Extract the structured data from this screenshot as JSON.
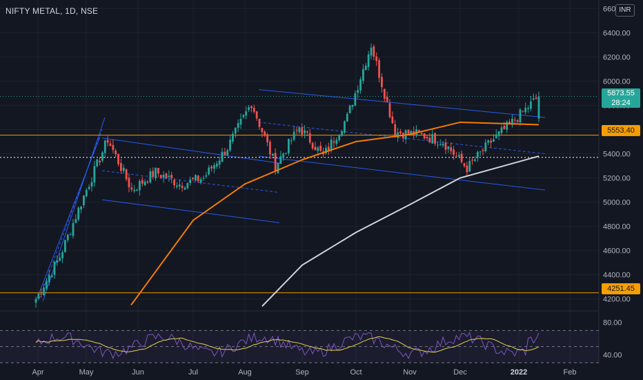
{
  "header": {
    "symbol_line": "NIFTY METAL, 1D, NSE"
  },
  "currency_button": "INR",
  "price_tags": {
    "last_price": "5873.55",
    "countdown": "28:24",
    "level_upper": "5553.40",
    "level_lower": "4251.45"
  },
  "colors": {
    "background": "#131722",
    "up": "#26a69a",
    "down": "#ef5350",
    "channel": "#2962ff",
    "ma_short": "#f57c00",
    "ma_long": "#d1d4dc",
    "level": "#f59d00",
    "rsi": "#7e57c2",
    "rsi_ma": "#e5d34c"
  },
  "chart_data": [
    {
      "type": "candlestick",
      "title": "NIFTY METAL, 1D, NSE",
      "x_ticks": [
        "Apr",
        "May",
        "Jun",
        "Jul",
        "Aug",
        "Sep",
        "Oct",
        "Nov",
        "Dec",
        "2022",
        "Feb"
      ],
      "y_ticks": [
        "4200.00",
        "4400.00",
        "4600.00",
        "4800.00",
        "5000.00",
        "5200.00",
        "5400.00",
        "5600.00",
        "5800.00",
        "6000.00",
        "6200.00",
        "6400.00",
        "6600.00"
      ],
      "ylim": [
        4130,
        6670
      ],
      "last_price": 5873.55,
      "horizontal_levels": [
        5553.4,
        4251.45
      ],
      "dotted_level": 5370,
      "ohlc_month_anchors": [
        {
          "month": "Apr",
          "close": 4200
        },
        {
          "month": "Apr-mid",
          "close": 4550
        },
        {
          "month": "May-start",
          "close": 5050
        },
        {
          "month": "May-peak",
          "close": 5520
        },
        {
          "month": "May-end",
          "close": 5100
        },
        {
          "month": "Jun",
          "close": 5250
        },
        {
          "month": "Jun-end",
          "close": 5150
        },
        {
          "month": "Jul",
          "close": 5200
        },
        {
          "month": "Jul-end",
          "close": 5450
        },
        {
          "month": "Aug",
          "close": 5820
        },
        {
          "month": "Aug-dip",
          "close": 5300
        },
        {
          "month": "Sep",
          "close": 5620
        },
        {
          "month": "Sep-end",
          "close": 5380
        },
        {
          "month": "Oct",
          "close": 5700
        },
        {
          "month": "Oct-peak",
          "close": 6300
        },
        {
          "month": "Oct-end",
          "close": 5580
        },
        {
          "month": "Nov",
          "close": 5560
        },
        {
          "month": "Nov-end",
          "close": 5500
        },
        {
          "month": "Dec",
          "close": 5280
        },
        {
          "month": "Dec-end",
          "close": 5500
        },
        {
          "month": "2022",
          "close": 5680
        },
        {
          "month": "last",
          "close": 5873.55
        }
      ],
      "series": [
        {
          "name": "",
          "kind": "moving-average-short",
          "points": [
            {
              "x": "May-end",
              "y": 4150
            },
            {
              "x": "Jul",
              "y": 4850
            },
            {
              "x": "Aug",
              "y": 5150
            },
            {
              "x": "Sep",
              "y": 5350
            },
            {
              "x": "Oct",
              "y": 5500
            },
            {
              "x": "Nov",
              "y": 5560
            },
            {
              "x": "Dec",
              "y": 5660
            },
            {
              "x": "2022",
              "y": 5640
            }
          ]
        },
        {
          "name": "",
          "kind": "moving-average-long",
          "points": [
            {
              "x": "Aug",
              "y": 4140
            },
            {
              "x": "Sep",
              "y": 4480
            },
            {
              "x": "Oct",
              "y": 4750
            },
            {
              "x": "Nov",
              "y": 4980
            },
            {
              "x": "Dec",
              "y": 5200
            },
            {
              "x": "2022",
              "y": 5380
            }
          ]
        }
      ]
    },
    {
      "type": "line",
      "title": "",
      "y_ticks": [
        "80.00",
        "40.00"
      ],
      "ylim": [
        30,
        90
      ],
      "bands": [
        70,
        50,
        30
      ],
      "series": [
        {
          "name": "",
          "kind": "rsi"
        },
        {
          "name": "",
          "kind": "rsi-ma"
        }
      ]
    }
  ]
}
